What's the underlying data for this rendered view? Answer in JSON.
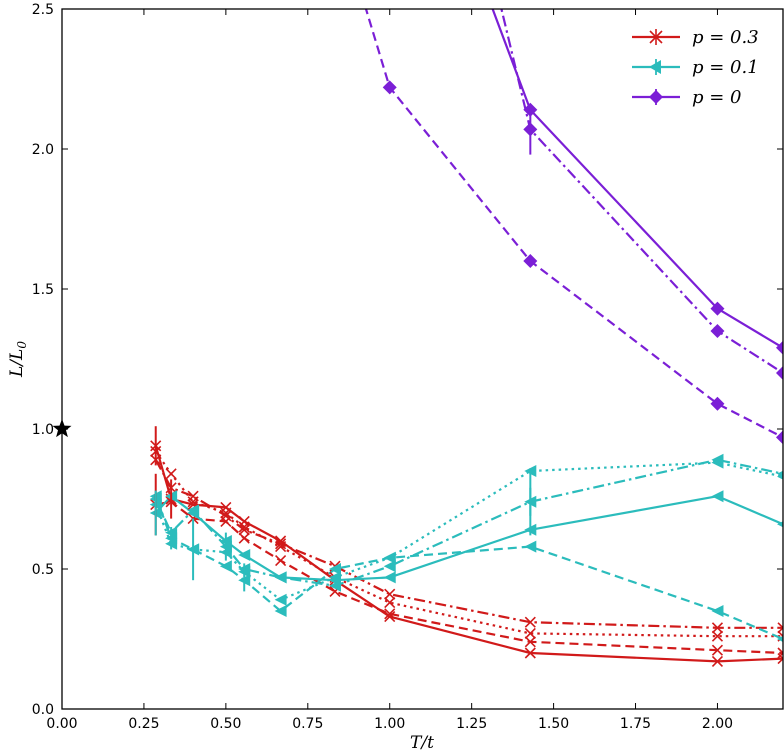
{
  "chart_data": {
    "type": "line",
    "xlabel": "T/t",
    "ylabel": "L/L0",
    "ylabel_main": "L/L",
    "ylabel_sub": "0",
    "xlim": [
      0.0,
      2.2
    ],
    "ylim": [
      0.0,
      2.5
    ],
    "xticks": [
      0.0,
      0.25,
      0.5,
      0.75,
      1.0,
      1.25,
      1.5,
      1.75,
      2.0
    ],
    "xtick_labels": [
      "0.00",
      "0.25",
      "0.50",
      "0.75",
      "1.00",
      "1.25",
      "1.50",
      "1.75",
      "2.00"
    ],
    "yticks": [
      0.0,
      0.5,
      1.0,
      1.5,
      2.0,
      2.5
    ],
    "ytick_labels": [
      "0.0",
      "0.5",
      "1.0",
      "1.5",
      "2.0",
      "2.5"
    ],
    "reference_marker": {
      "x": 0.0,
      "y": 1.0,
      "shape": "star",
      "color": "#000000"
    },
    "legend": {
      "position": "top-right",
      "entries": [
        {
          "label": "p = 0.3",
          "color": "#d11a1a",
          "marker": "x"
        },
        {
          "label": "p = 0.1",
          "color": "#2bbcbc",
          "marker": "triangle-left"
        },
        {
          "label": "p = 0",
          "color": "#7b1fd6",
          "marker": "diamond"
        }
      ]
    },
    "series": [
      {
        "name": "p=0.3 solid",
        "group": "p = 0.3",
        "color": "#d11a1a",
        "dash": "solid",
        "marker": "x",
        "x": [
          0.286,
          0.333,
          0.4,
          0.5,
          0.556,
          0.667,
          0.833,
          1.0,
          1.429,
          2.0,
          2.2
        ],
        "y": [
          0.94,
          0.75,
          0.73,
          0.72,
          0.67,
          0.6,
          0.46,
          0.33,
          0.2,
          0.17,
          0.18
        ]
      },
      {
        "name": "p=0.3 dashed",
        "group": "p = 0.3",
        "color": "#d11a1a",
        "dash": "dashed",
        "marker": "x",
        "x": [
          0.286,
          0.333,
          0.4,
          0.5,
          0.556,
          0.667,
          0.833,
          1.0,
          1.429,
          2.0,
          2.2
        ],
        "y": [
          0.73,
          0.74,
          0.68,
          0.67,
          0.61,
          0.53,
          0.42,
          0.34,
          0.24,
          0.21,
          0.2
        ]
      },
      {
        "name": "p=0.3 dotted",
        "group": "p = 0.3",
        "color": "#d11a1a",
        "dash": "dotted",
        "marker": "x",
        "x": [
          0.286,
          0.333,
          0.4,
          0.5,
          0.556,
          0.667,
          0.833,
          1.0,
          1.429,
          2.0,
          2.2
        ],
        "y": [
          0.92,
          0.84,
          0.74,
          0.7,
          0.65,
          0.58,
          0.47,
          0.38,
          0.27,
          0.26,
          0.26
        ]
      },
      {
        "name": "p=0.3 dashdot",
        "group": "p = 0.3",
        "color": "#d11a1a",
        "dash": "dashdot",
        "marker": "x",
        "x": [
          0.286,
          0.333,
          0.4,
          0.5,
          0.556,
          0.667,
          0.833,
          1.0,
          1.429,
          2.0,
          2.2
        ],
        "y": [
          0.89,
          0.79,
          0.76,
          0.69,
          0.64,
          0.59,
          0.51,
          0.41,
          0.31,
          0.29,
          0.29
        ]
      },
      {
        "name": "p=0.1 solid",
        "group": "p = 0.1",
        "color": "#2bbcbc",
        "dash": "solid",
        "marker": "triangle-left",
        "x": [
          0.286,
          0.333,
          0.4,
          0.5,
          0.556,
          0.667,
          0.833,
          1.0,
          1.429,
          2.0,
          2.2
        ],
        "y": [
          0.7,
          0.76,
          0.7,
          0.6,
          0.55,
          0.47,
          0.46,
          0.47,
          0.64,
          0.76,
          0.66
        ]
      },
      {
        "name": "p=0.1 dashed",
        "group": "p = 0.1",
        "color": "#2bbcbc",
        "dash": "dashed",
        "marker": "triangle-left",
        "x": [
          0.286,
          0.333,
          0.4,
          0.5,
          0.556,
          0.667,
          0.833,
          1.0,
          1.429,
          2.0,
          2.2
        ],
        "y": [
          0.76,
          0.61,
          0.57,
          0.51,
          0.46,
          0.35,
          0.5,
          0.54,
          0.58,
          0.35,
          0.25
        ]
      },
      {
        "name": "p=0.1 dotted",
        "group": "p = 0.1",
        "color": "#2bbcbc",
        "dash": "dotted",
        "marker": "triangle-left",
        "x": [
          0.286,
          0.333,
          0.4,
          0.5,
          0.556,
          0.667,
          0.833,
          1.0,
          1.429,
          2.0,
          2.2
        ],
        "y": [
          0.73,
          0.59,
          0.57,
          0.56,
          0.49,
          0.39,
          0.47,
          0.54,
          0.85,
          0.88,
          0.83
        ]
      },
      {
        "name": "p=0.1 dashdot",
        "group": "p = 0.1",
        "color": "#2bbcbc",
        "dash": "dashdot",
        "marker": "triangle-left",
        "x": [
          0.286,
          0.333,
          0.4,
          0.5,
          0.556,
          0.667,
          0.833,
          1.0,
          1.429,
          2.0,
          2.2
        ],
        "y": [
          0.75,
          0.63,
          0.71,
          0.58,
          0.5,
          0.47,
          0.44,
          0.51,
          0.74,
          0.89,
          0.84
        ]
      },
      {
        "name": "p=0 solid",
        "group": "p = 0",
        "color": "#7b1fd6",
        "dash": "solid",
        "marker": "diamond",
        "x": [
          1.25,
          1.429,
          2.0,
          2.2
        ],
        "y": [
          2.7,
          2.14,
          1.43,
          1.29
        ]
      },
      {
        "name": "p=0 dashed",
        "group": "p = 0",
        "color": "#7b1fd6",
        "dash": "dashed",
        "marker": "diamond",
        "x": [
          0.85,
          1.0,
          1.429,
          2.0,
          2.2
        ],
        "y": [
          2.8,
          2.22,
          1.6,
          1.09,
          0.97
        ]
      },
      {
        "name": "p=0 dashdot",
        "group": "p = 0",
        "color": "#7b1fd6",
        "dash": "dashdot",
        "marker": "diamond",
        "x": [
          1.3,
          1.429,
          2.0,
          2.2
        ],
        "y": [
          2.7,
          2.07,
          1.35,
          1.2
        ]
      }
    ],
    "error_bars": [
      {
        "x": 0.286,
        "y": 0.94,
        "err": 0.07,
        "color": "#d11a1a"
      },
      {
        "x": 0.286,
        "y": 0.73,
        "err": 0.11,
        "color": "#d11a1a"
      },
      {
        "x": 0.333,
        "y": 0.75,
        "err": 0.07,
        "color": "#d11a1a"
      },
      {
        "x": 0.286,
        "y": 0.7,
        "err": 0.08,
        "color": "#2bbcbc"
      },
      {
        "x": 0.333,
        "y": 0.61,
        "err": 0.04,
        "color": "#2bbcbc"
      },
      {
        "x": 0.4,
        "y": 0.57,
        "err": 0.11,
        "color": "#2bbcbc"
      },
      {
        "x": 0.5,
        "y": 0.58,
        "err": 0.05,
        "color": "#2bbcbc"
      },
      {
        "x": 0.556,
        "y": 0.47,
        "err": 0.05,
        "color": "#2bbcbc"
      },
      {
        "x": 1.429,
        "y": 0.74,
        "err": 0.12,
        "color": "#2bbcbc"
      },
      {
        "x": 1.429,
        "y": 0.74,
        "err": 0.05,
        "color": "#2bbcbc"
      },
      {
        "x": 1.429,
        "y": 2.07,
        "err": 0.09,
        "color": "#7b1fd6"
      }
    ]
  }
}
